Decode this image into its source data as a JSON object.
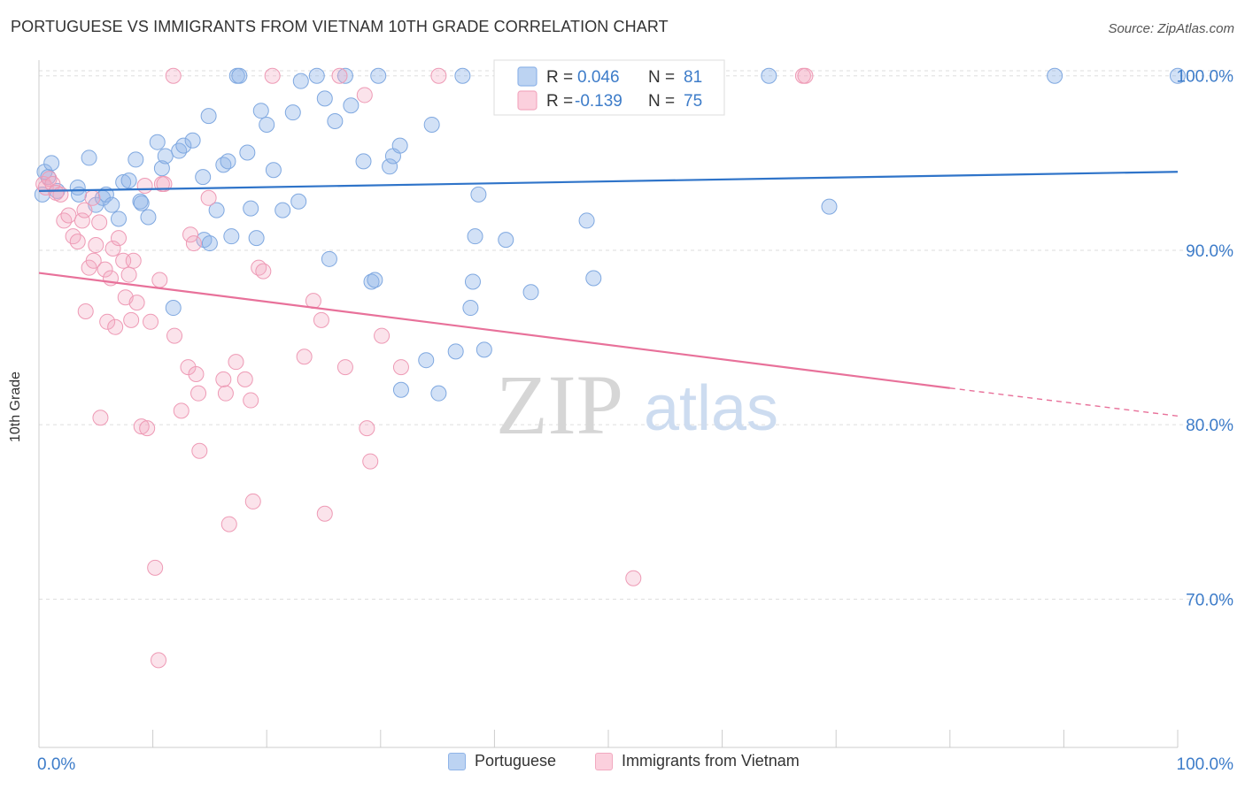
{
  "title": "PORTUGUESE VS IMMIGRANTS FROM VIETNAM 10TH GRADE CORRELATION CHART",
  "source": "Source: ZipAtlas.com",
  "watermark": {
    "zip": "ZIP",
    "atlas": "atlas"
  },
  "colors": {
    "blue": "#8fb4e8",
    "blue_line": "#2f74c9",
    "pink": "#f2a9c0",
    "pink_line": "#e8719a",
    "axis_text": "#3d7cc9",
    "grid": "#dddddd"
  },
  "legend": {
    "rows": [
      {
        "r_label": "R =",
        "r_value": "0.046",
        "n_label": "N =",
        "n_value": "81"
      },
      {
        "r_label": "R =",
        "r_value": "-0.139",
        "n_label": "N =",
        "n_value": "75"
      }
    ]
  },
  "chart_data": {
    "type": "scatter",
    "title": "PORTUGUESE VS IMMIGRANTS FROM VIETNAM 10TH GRADE CORRELATION CHART",
    "xlabel": "",
    "ylabel": "10th Grade",
    "xlim": [
      0,
      100
    ],
    "ylim": [
      61.5,
      100.9
    ],
    "x_tick_labels": [
      "0.0%",
      "100.0%"
    ],
    "y_ticks": [
      100,
      90,
      80,
      70
    ],
    "y_tick_labels": [
      "100.0%",
      "90.0%",
      "80.0%",
      "70.0%"
    ],
    "series": [
      {
        "name": "Portuguese",
        "R": 0.046,
        "N": 81,
        "trend": {
          "x0": 0,
          "y0": 93.4,
          "x1": 100,
          "y1": 94.5
        },
        "points": [
          [
            0.3,
            93.2
          ],
          [
            0.5,
            94.5
          ],
          [
            0.8,
            94.2
          ],
          [
            1.1,
            95.0
          ],
          [
            1.6,
            93.4
          ],
          [
            3.4,
            93.6
          ],
          [
            3.5,
            93.2
          ],
          [
            4.4,
            95.3
          ],
          [
            5.0,
            92.6
          ],
          [
            5.6,
            93.0
          ],
          [
            5.9,
            93.2
          ],
          [
            6.4,
            92.6
          ],
          [
            7.0,
            91.8
          ],
          [
            7.4,
            93.9
          ],
          [
            7.9,
            94.0
          ],
          [
            8.5,
            95.2
          ],
          [
            8.9,
            92.8
          ],
          [
            9.0,
            92.7
          ],
          [
            9.6,
            91.9
          ],
          [
            10.4,
            96.2
          ],
          [
            10.8,
            94.7
          ],
          [
            11.1,
            95.4
          ],
          [
            11.8,
            86.7
          ],
          [
            12.3,
            95.7
          ],
          [
            12.7,
            96.0
          ],
          [
            13.5,
            96.3
          ],
          [
            14.4,
            94.2
          ],
          [
            14.5,
            90.6
          ],
          [
            14.9,
            97.7
          ],
          [
            15.0,
            90.4
          ],
          [
            15.6,
            92.3
          ],
          [
            16.2,
            94.9
          ],
          [
            16.6,
            95.1
          ],
          [
            16.9,
            90.8
          ],
          [
            17.4,
            100.0
          ],
          [
            17.6,
            100.0
          ],
          [
            18.3,
            95.6
          ],
          [
            18.6,
            92.4
          ],
          [
            19.1,
            90.7
          ],
          [
            19.5,
            98.0
          ],
          [
            20.0,
            97.2
          ],
          [
            20.6,
            94.6
          ],
          [
            21.4,
            92.3
          ],
          [
            22.3,
            97.9
          ],
          [
            22.8,
            92.8
          ],
          [
            23.0,
            99.7
          ],
          [
            24.4,
            100.0
          ],
          [
            25.1,
            98.7
          ],
          [
            25.5,
            89.5
          ],
          [
            26.0,
            97.4
          ],
          [
            26.9,
            100.0
          ],
          [
            27.4,
            98.3
          ],
          [
            28.5,
            95.1
          ],
          [
            29.2,
            88.2
          ],
          [
            29.5,
            88.3
          ],
          [
            29.8,
            100.0
          ],
          [
            30.8,
            94.8
          ],
          [
            31.1,
            95.4
          ],
          [
            31.7,
            96.0
          ],
          [
            31.8,
            82.0
          ],
          [
            34.0,
            83.7
          ],
          [
            34.5,
            97.2
          ],
          [
            35.1,
            81.8
          ],
          [
            36.6,
            84.2
          ],
          [
            37.2,
            100.0
          ],
          [
            37.9,
            86.7
          ],
          [
            38.1,
            88.2
          ],
          [
            38.3,
            90.8
          ],
          [
            38.6,
            93.2
          ],
          [
            39.1,
            84.3
          ],
          [
            41.0,
            90.6
          ],
          [
            43.2,
            87.6
          ],
          [
            45.2,
            100.0
          ],
          [
            48.1,
            91.7
          ],
          [
            48.7,
            88.4
          ],
          [
            51.0,
            100.0
          ],
          [
            64.1,
            100.0
          ],
          [
            69.4,
            92.5
          ],
          [
            89.2,
            100.0
          ],
          [
            100.0,
            100.0
          ]
        ]
      },
      {
        "name": "Immigrants from Vietnam",
        "R": -0.139,
        "N": 75,
        "trend": {
          "x0": 0,
          "y0": 88.7,
          "x1": 80,
          "y1": 82.1,
          "x2": 100,
          "y2": 80.5
        },
        "points": [
          [
            0.4,
            93.8
          ],
          [
            0.6,
            93.6
          ],
          [
            0.9,
            94.1
          ],
          [
            1.2,
            93.8
          ],
          [
            1.5,
            93.3
          ],
          [
            1.9,
            93.2
          ],
          [
            2.2,
            91.7
          ],
          [
            2.6,
            92.0
          ],
          [
            3.0,
            90.8
          ],
          [
            3.4,
            90.5
          ],
          [
            3.8,
            91.7
          ],
          [
            4.0,
            92.3
          ],
          [
            4.1,
            86.5
          ],
          [
            4.4,
            89.0
          ],
          [
            4.7,
            93.0
          ],
          [
            4.8,
            89.4
          ],
          [
            5.0,
            90.3
          ],
          [
            5.3,
            91.6
          ],
          [
            5.4,
            80.4
          ],
          [
            5.8,
            88.9
          ],
          [
            6.0,
            85.9
          ],
          [
            6.3,
            88.4
          ],
          [
            6.5,
            90.1
          ],
          [
            6.7,
            85.6
          ],
          [
            7.0,
            90.7
          ],
          [
            7.4,
            89.4
          ],
          [
            7.6,
            87.3
          ],
          [
            7.9,
            88.6
          ],
          [
            8.1,
            86.0
          ],
          [
            8.3,
            89.4
          ],
          [
            8.6,
            87.0
          ],
          [
            9.0,
            79.9
          ],
          [
            9.3,
            93.7
          ],
          [
            9.5,
            79.8
          ],
          [
            9.8,
            85.9
          ],
          [
            10.2,
            71.8
          ],
          [
            10.5,
            66.5
          ],
          [
            10.6,
            88.3
          ],
          [
            10.8,
            93.8
          ],
          [
            11.0,
            93.8
          ],
          [
            11.8,
            100.0
          ],
          [
            11.9,
            85.1
          ],
          [
            12.5,
            80.8
          ],
          [
            13.1,
            83.3
          ],
          [
            13.3,
            90.9
          ],
          [
            13.6,
            90.4
          ],
          [
            13.8,
            82.9
          ],
          [
            14.0,
            81.8
          ],
          [
            14.1,
            78.5
          ],
          [
            14.9,
            93.0
          ],
          [
            16.2,
            82.6
          ],
          [
            16.4,
            81.8
          ],
          [
            16.7,
            74.3
          ],
          [
            17.3,
            83.6
          ],
          [
            18.1,
            82.6
          ],
          [
            18.6,
            81.4
          ],
          [
            18.8,
            75.6
          ],
          [
            19.3,
            89.0
          ],
          [
            19.7,
            88.8
          ],
          [
            20.5,
            100.0
          ],
          [
            23.3,
            83.9
          ],
          [
            24.1,
            87.1
          ],
          [
            24.8,
            86.0
          ],
          [
            25.1,
            74.9
          ],
          [
            26.4,
            100.0
          ],
          [
            26.9,
            83.3
          ],
          [
            28.6,
            98.9
          ],
          [
            28.8,
            79.8
          ],
          [
            29.1,
            77.9
          ],
          [
            30.1,
            85.1
          ],
          [
            31.8,
            83.3
          ],
          [
            35.1,
            100.0
          ],
          [
            52.2,
            71.2
          ],
          [
            67.1,
            100.0
          ],
          [
            67.3,
            100.0
          ]
        ]
      }
    ]
  },
  "bottom_legend": {
    "items": [
      "Portuguese",
      "Immigrants from Vietnam"
    ]
  }
}
